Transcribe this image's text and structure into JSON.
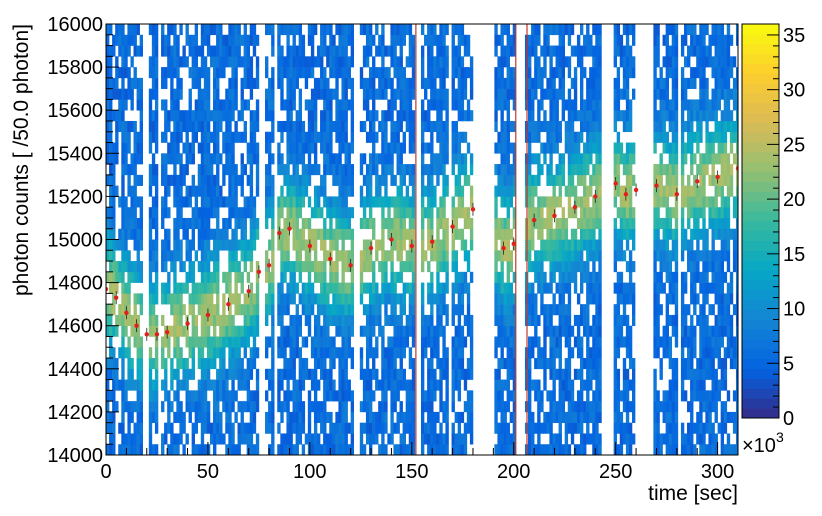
{
  "chart_data": {
    "type": "heatmap",
    "title": "",
    "xlabel": "time [sec]",
    "ylabel": "photon counts [ /50.0 photon]",
    "xlim": [
      0,
      310
    ],
    "ylim": [
      14000,
      16000
    ],
    "x_ticks": [
      0,
      50,
      100,
      150,
      200,
      250,
      300
    ],
    "y_ticks": [
      14000,
      14200,
      14400,
      14600,
      14800,
      15000,
      15200,
      15400,
      15600,
      15800,
      16000
    ],
    "bin_size_y": 50,
    "colorbar": {
      "range": [
        0,
        36
      ],
      "ticks": [
        0,
        5,
        10,
        15,
        20,
        25,
        30,
        35
      ],
      "multiplier_label": "×10",
      "multiplier_exponent": "3",
      "palette": [
        "#352a87",
        "#0363e1",
        "#1485d4",
        "#06a7c6",
        "#38b99e",
        "#92bf73",
        "#d9ba56",
        "#fcce2e",
        "#f9fb0e"
      ]
    },
    "gaps": [
      [
        18,
        21
      ],
      [
        25,
        27
      ],
      [
        74.5,
        77.5
      ],
      [
        82,
        84
      ],
      [
        122,
        124
      ],
      [
        152,
        154
      ],
      [
        168,
        170
      ],
      [
        180,
        190
      ],
      [
        201,
        205
      ],
      [
        243,
        249
      ],
      [
        260,
        268
      ],
      [
        280,
        282
      ]
    ],
    "vertical_markers": {
      "color": "#c0392b",
      "x": [
        152,
        201,
        206.5
      ]
    },
    "trend_points": {
      "color": "#e0201b",
      "x": [
        0,
        5,
        10,
        15,
        20,
        25,
        30,
        40,
        50,
        60,
        70,
        75,
        80,
        85,
        90,
        100,
        110,
        120,
        130,
        140,
        150,
        160,
        170,
        180,
        195,
        200,
        210,
        220,
        230,
        240,
        250,
        255,
        260,
        270,
        280,
        290,
        300,
        310
      ],
      "y": [
        14770,
        14730,
        14660,
        14600,
        14560,
        14560,
        14570,
        14610,
        14650,
        14700,
        14760,
        14850,
        14880,
        15030,
        15050,
        14970,
        14910,
        14880,
        14960,
        15000,
        14970,
        14990,
        15060,
        15140,
        14960,
        14980,
        15090,
        15110,
        15150,
        15200,
        15260,
        15210,
        15230,
        15250,
        15210,
        15270,
        15290,
        15330
      ]
    }
  }
}
